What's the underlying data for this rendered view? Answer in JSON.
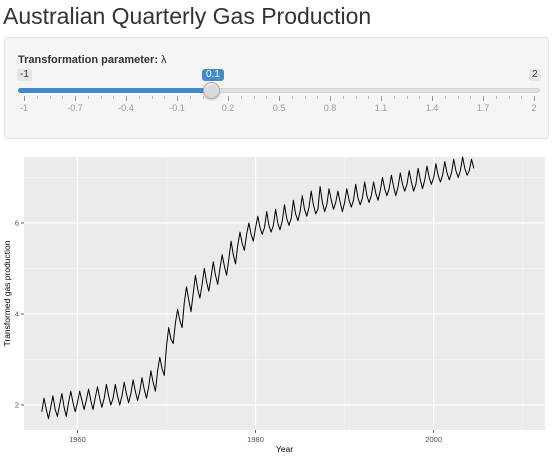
{
  "page": {
    "title": "Australian Quarterly Gas Production"
  },
  "slider": {
    "label": "Transformation parameter:",
    "symbol": "λ",
    "min_label": "-1",
    "max_label": "2",
    "value_label": "0.1",
    "min": -1,
    "max": 2,
    "value": 0.1,
    "step": 0.1,
    "grid": [
      "-1",
      "-0.7",
      "-0.4",
      "-0.1",
      "0.2",
      "0.5",
      "0.8",
      "1.1",
      "1.4",
      "1.7",
      "2"
    ],
    "accent_color": "#428bca"
  },
  "chart_data": {
    "type": "line",
    "title": "",
    "xlabel": "Year",
    "ylabel": "Transformed gas production",
    "xlim": [
      1954,
      2012.5
    ],
    "ylim": [
      1.45,
      7.45
    ],
    "xticks": [
      1960,
      1980,
      2000
    ],
    "yticks": [
      2,
      4,
      6
    ],
    "grid": true,
    "background": "#ebebeb",
    "line_color": "#000000",
    "quarterly_start": 1956.0,
    "series": [
      {
        "values": [
          1.85,
          2.15,
          1.9,
          1.7,
          1.95,
          2.2,
          1.9,
          1.75,
          2.0,
          2.25,
          1.95,
          1.75,
          2.05,
          2.3,
          2.05,
          1.85,
          2.05,
          2.3,
          2.1,
          1.9,
          2.1,
          2.35,
          2.1,
          1.9,
          2.15,
          2.4,
          2.15,
          1.95,
          2.15,
          2.45,
          2.2,
          2.0,
          2.15,
          2.45,
          2.2,
          2.0,
          2.2,
          2.5,
          2.25,
          2.05,
          2.25,
          2.55,
          2.3,
          2.1,
          2.3,
          2.6,
          2.35,
          2.15,
          2.4,
          2.75,
          2.5,
          2.3,
          2.75,
          3.05,
          2.8,
          2.65,
          3.3,
          3.7,
          3.45,
          3.35,
          3.8,
          4.1,
          3.85,
          3.7,
          4.25,
          4.6,
          4.3,
          4.05,
          4.45,
          4.85,
          4.55,
          4.35,
          4.65,
          5.0,
          4.7,
          4.5,
          4.8,
          5.15,
          4.85,
          4.65,
          5.0,
          5.3,
          5.05,
          4.85,
          5.2,
          5.6,
          5.3,
          5.1,
          5.5,
          5.8,
          5.55,
          5.4,
          5.75,
          6.0,
          5.75,
          5.6,
          5.9,
          6.15,
          5.9,
          5.75,
          5.9,
          6.25,
          5.95,
          5.8,
          5.95,
          6.3,
          6.0,
          5.85,
          6.05,
          6.4,
          6.1,
          5.95,
          6.1,
          6.5,
          6.2,
          6.05,
          6.25,
          6.6,
          6.3,
          6.15,
          6.35,
          6.7,
          6.4,
          6.2,
          6.3,
          6.8,
          6.45,
          6.25,
          6.4,
          6.75,
          6.5,
          6.3,
          6.45,
          6.7,
          6.45,
          6.25,
          6.45,
          6.75,
          6.5,
          6.35,
          6.5,
          6.85,
          6.55,
          6.4,
          6.55,
          6.9,
          6.6,
          6.45,
          6.6,
          6.9,
          6.65,
          6.5,
          6.7,
          7.0,
          6.75,
          6.6,
          6.75,
          7.05,
          6.8,
          6.6,
          6.8,
          7.1,
          6.85,
          6.7,
          6.85,
          7.15,
          6.9,
          6.7,
          6.85,
          7.2,
          6.95,
          6.75,
          6.95,
          7.25,
          7.0,
          6.85,
          7.0,
          7.3,
          7.05,
          6.9,
          7.05,
          7.35,
          7.1,
          6.95,
          7.1,
          7.4,
          7.15,
          7.0,
          7.15,
          7.45,
          7.2,
          7.05,
          7.15,
          7.4,
          7.2
        ]
      }
    ]
  }
}
